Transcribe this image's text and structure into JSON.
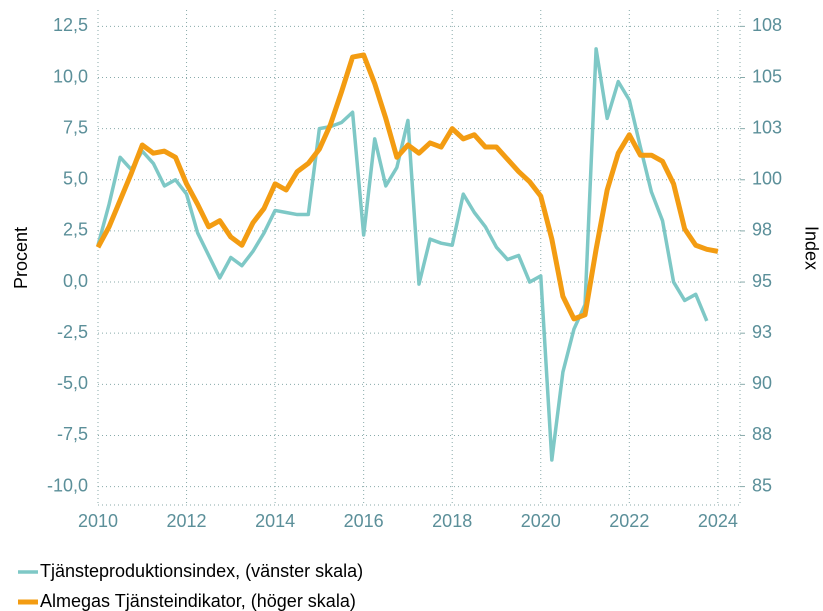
{
  "chart_data": {
    "type": "line",
    "ylabel": "Procent",
    "y2label": "Index",
    "x": [
      2010.0,
      2010.25,
      2010.5,
      2010.75,
      2011.0,
      2011.25,
      2011.5,
      2011.75,
      2012.0,
      2012.25,
      2012.5,
      2012.75,
      2013.0,
      2013.25,
      2013.5,
      2013.75,
      2014.0,
      2014.25,
      2014.5,
      2014.75,
      2015.0,
      2015.25,
      2015.5,
      2015.75,
      2016.0,
      2016.25,
      2016.5,
      2016.75,
      2017.0,
      2017.25,
      2017.5,
      2017.75,
      2018.0,
      2018.25,
      2018.5,
      2018.75,
      2019.0,
      2019.25,
      2019.5,
      2019.75,
      2020.0,
      2020.25,
      2020.5,
      2020.75,
      2021.0,
      2021.25,
      2021.5,
      2021.75,
      2022.0,
      2022.25,
      2022.5,
      2022.75,
      2023.0,
      2023.25,
      2023.5,
      2023.75,
      2024.0
    ],
    "series": [
      {
        "name": "Tjänsteproduktionsindex, (vänster skala)",
        "color": "#7ec8c6",
        "axis": "y",
        "values": [
          1.8,
          3.8,
          6.1,
          5.5,
          6.4,
          5.8,
          4.7,
          5.0,
          4.3,
          2.4,
          1.3,
          0.2,
          1.2,
          0.8,
          1.5,
          2.4,
          3.5,
          3.4,
          3.3,
          3.3,
          7.5,
          7.6,
          7.8,
          8.3,
          2.3,
          7.0,
          4.7,
          5.6,
          7.9,
          -0.1,
          2.1,
          1.9,
          1.8,
          4.3,
          3.4,
          2.7,
          1.7,
          1.1,
          1.3,
          0.0,
          0.3,
          -8.7,
          -4.4,
          -2.3,
          -1.1,
          11.4,
          8.0,
          9.8,
          8.9,
          6.6,
          4.4,
          3.0,
          0.0,
          -0.9,
          -0.6,
          -1.9,
          null
        ]
      },
      {
        "name": "Almegas Tjänsteindikator, (höger skala)",
        "color": "#f39c12",
        "axis": "y2",
        "values": [
          96.7,
          97.7,
          99.0,
          100.3,
          101.7,
          101.3,
          101.4,
          101.1,
          99.8,
          98.8,
          97.7,
          98.0,
          97.2,
          96.8,
          97.9,
          98.6,
          99.8,
          99.5,
          100.4,
          100.8,
          101.5,
          102.7,
          104.3,
          106.0,
          106.1,
          104.7,
          103.0,
          101.1,
          101.7,
          101.3,
          101.8,
          101.6,
          102.5,
          102.0,
          102.2,
          101.6,
          101.6,
          101.0,
          100.4,
          99.9,
          99.2,
          97.1,
          94.3,
          93.2,
          93.4,
          96.6,
          99.5,
          101.3,
          102.2,
          101.2,
          101.2,
          100.9,
          99.8,
          97.6,
          96.8,
          96.6,
          96.5
        ]
      }
    ],
    "xlim": [
      2010,
      2024.5
    ],
    "xticks": [
      2010,
      2012,
      2014,
      2016,
      2018,
      2020,
      2022,
      2024
    ],
    "ylim": [
      -10.9,
      13.3
    ],
    "yticks": [
      {
        "value": -10,
        "label": "-10,0"
      },
      {
        "value": -7.5,
        "label": "-7,5"
      },
      {
        "value": -5,
        "label": "-5,0"
      },
      {
        "value": -2.5,
        "label": "-2,5"
      },
      {
        "value": 0,
        "label": "0,0"
      },
      {
        "value": 2.5,
        "label": "2,5"
      },
      {
        "value": 5,
        "label": "5,0"
      },
      {
        "value": 7.5,
        "label": "7,5"
      },
      {
        "value": 10,
        "label": "10,0"
      },
      {
        "value": 12.5,
        "label": "12,5"
      }
    ],
    "y2lim": [
      84.1,
      108.3
    ],
    "y2ticks": [
      {
        "value": 85,
        "label": "85"
      },
      {
        "value": 87.5,
        "label": "88"
      },
      {
        "value": 90,
        "label": "90"
      },
      {
        "value": 92.5,
        "label": "93"
      },
      {
        "value": 95,
        "label": "95"
      },
      {
        "value": 97.5,
        "label": "98"
      },
      {
        "value": 100,
        "label": "100"
      },
      {
        "value": 102.5,
        "label": "103"
      },
      {
        "value": 105,
        "label": "105"
      },
      {
        "value": 107.5,
        "label": "108"
      }
    ],
    "grid": true
  }
}
